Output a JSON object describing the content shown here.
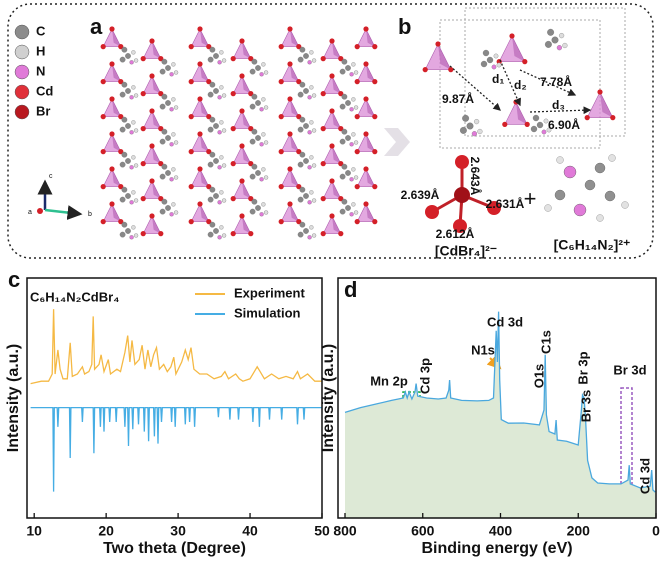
{
  "panel_a": {
    "label": "a",
    "legend": [
      "C",
      "H",
      "N",
      "Cd",
      "Br"
    ],
    "axes": [
      "c",
      "a",
      "b"
    ]
  },
  "panel_b": {
    "label": "b",
    "distances": [
      "d₁",
      "d₂",
      "7.78Å",
      "9.87Å",
      "d₃",
      "6.90Å"
    ],
    "bonds": [
      "2.643Å",
      "2.639Å",
      "2.631Å",
      "2.612Å"
    ],
    "anion": "[CdBr₄]²⁻",
    "cation": "[C₆H₁₄N₂]²⁺"
  },
  "chart_data": [
    {
      "type": "line",
      "panel": "c",
      "xlabel": "Two theta (Degree)",
      "ylabel": "Intensity (a.u.)",
      "annotations": [
        "C₆H₁₄N₂CdBr₄"
      ],
      "xlim": [
        9,
        50
      ],
      "xticks": [
        10,
        20,
        30,
        40,
        50
      ],
      "ylim": [
        0,
        100
      ],
      "series": [
        {
          "name": "Experiment",
          "color": "#f5b944",
          "x": [
            9.5,
            11,
            12,
            12.5,
            12.7,
            12.9,
            13.3,
            13.6,
            14,
            14.6,
            15,
            15.3,
            16,
            16.7,
            17,
            17.6,
            18,
            18.2,
            18.4,
            19,
            19.3,
            19.7,
            20.3,
            20.6,
            21.5,
            22,
            22.6,
            23,
            23.3,
            23.6,
            24,
            24.6,
            25,
            25.4,
            25.8,
            26.2,
            26.6,
            27,
            27.4,
            28,
            28.5,
            29,
            29.4,
            29.7,
            30.5,
            31,
            31.4,
            31.8,
            32.2,
            33,
            34,
            35,
            36,
            36.5,
            37,
            38,
            38.5,
            39,
            40,
            41,
            41.4,
            42,
            43,
            44,
            45,
            46,
            46.6,
            47,
            48,
            49,
            50
          ],
          "values": [
            56,
            57,
            57,
            60,
            87,
            60,
            70,
            62,
            58,
            58,
            73,
            59,
            60,
            63,
            60,
            61,
            64,
            84,
            62,
            64,
            68,
            61,
            66,
            60,
            62,
            61,
            69,
            76,
            65,
            74,
            64,
            66,
            72,
            62,
            70,
            63,
            68,
            71,
            62,
            64,
            61,
            63,
            67,
            60,
            65,
            70,
            66,
            71,
            62,
            60,
            60,
            58,
            59,
            61,
            58,
            60,
            58,
            57,
            58,
            63,
            61,
            58,
            60,
            58,
            59,
            58,
            61,
            58,
            60,
            57,
            57
          ]
        },
        {
          "name": "Simulation",
          "color": "#45ade4",
          "x": [
            9.5,
            12.6,
            12.7,
            12.8,
            13.2,
            13.3,
            13.4,
            14.9,
            15,
            15.1,
            16.6,
            16.7,
            16.8,
            18.2,
            18.3,
            18.4,
            19.1,
            19.2,
            19.3,
            19.6,
            19.7,
            19.8,
            20.4,
            20.5,
            20.6,
            21.3,
            21.4,
            21.5,
            22.5,
            22.6,
            22.7,
            23,
            23.1,
            23.2,
            23.6,
            23.7,
            23.8,
            24.4,
            24.5,
            24.6,
            25.2,
            25.3,
            25.4,
            25.8,
            25.9,
            26,
            26.6,
            26.7,
            26.8,
            27.1,
            27.2,
            27.3,
            27.6,
            27.7,
            27.8,
            29,
            29.1,
            29.2,
            29.5,
            29.6,
            29.7,
            30.9,
            31,
            31.1,
            31.5,
            31.6,
            31.7,
            32.2,
            32.3,
            32.4,
            35.5,
            35.6,
            35.7,
            37.1,
            37.2,
            37.3,
            38.3,
            38.4,
            38.5,
            40.3,
            40.4,
            40.5,
            41.2,
            41.3,
            41.4,
            42.6,
            42.7,
            42.8,
            44.3,
            44.4,
            44.5,
            46.5,
            46.6,
            46.7,
            47.4,
            47.5,
            47.6,
            50
          ],
          "values": [
            46,
            46,
            11,
            46,
            46,
            38,
            46,
            46,
            25,
            46,
            46,
            40,
            46,
            46,
            27,
            46,
            46,
            38,
            46,
            46,
            36,
            46,
            46,
            40,
            46,
            46,
            40,
            46,
            46,
            38,
            46,
            46,
            30,
            46,
            46,
            37,
            46,
            46,
            39,
            46,
            46,
            36,
            46,
            46,
            32,
            46,
            46,
            34,
            46,
            46,
            31,
            46,
            46,
            40,
            46,
            46,
            40,
            46,
            46,
            38,
            46,
            46,
            39,
            46,
            46,
            40,
            46,
            46,
            38,
            46,
            46,
            42,
            46,
            46,
            41,
            46,
            46,
            41,
            46,
            46,
            40,
            46,
            46,
            38,
            46,
            46,
            41,
            46,
            46,
            41,
            46,
            46,
            39,
            46,
            46,
            41,
            46,
            46
          ]
        }
      ]
    },
    {
      "type": "line",
      "panel": "d",
      "xlabel": "Binding energy (eV)",
      "ylabel": "Intensity (a.u.)",
      "annotations": [
        "Cd 3d",
        "N1s",
        "C1s",
        "O1s",
        "Br 3s",
        "Br 3p",
        "Br 3d",
        "Cd 3d",
        "Mn 2p",
        "Cd 3p"
      ],
      "xlim": [
        818,
        0
      ],
      "xticks": [
        800,
        600,
        400,
        200,
        0
      ],
      "ylim": [
        0,
        100
      ],
      "area": true,
      "fill_color": "#dde9d6",
      "series": [
        {
          "color": "#4aa8de",
          "x": [
            800,
            760,
            720,
            680,
            650,
            645,
            640,
            635,
            628,
            620,
            617,
            613,
            590,
            560,
            540,
            533,
            531,
            528,
            500,
            460,
            430,
            418,
            411,
            408,
            405,
            402,
            398,
            380,
            340,
            300,
            288,
            285,
            282,
            275,
            260,
            257,
            254,
            230,
            200,
            192,
            189,
            185,
            181,
            176,
            165,
            150,
            120,
            90,
            72,
            69,
            66,
            40,
            15,
            11,
            8,
            2
          ],
          "values": [
            44,
            46,
            47.5,
            49,
            50,
            52.5,
            50,
            52.5,
            49.6,
            52.5,
            56,
            50.8,
            50,
            49.6,
            50,
            53.3,
            57.5,
            50,
            49,
            48.8,
            49,
            50,
            78,
            65,
            86,
            57.5,
            41,
            39.5,
            39.6,
            38.8,
            45,
            68,
            43,
            36,
            35,
            40.8,
            32.5,
            32,
            30.4,
            45,
            51.2,
            50,
            41,
            24,
            16.7,
            14.6,
            14.2,
            14.2,
            15.8,
            22,
            14.2,
            12.5,
            13.3,
            20,
            11.7,
            10.8
          ]
        }
      ]
    }
  ]
}
